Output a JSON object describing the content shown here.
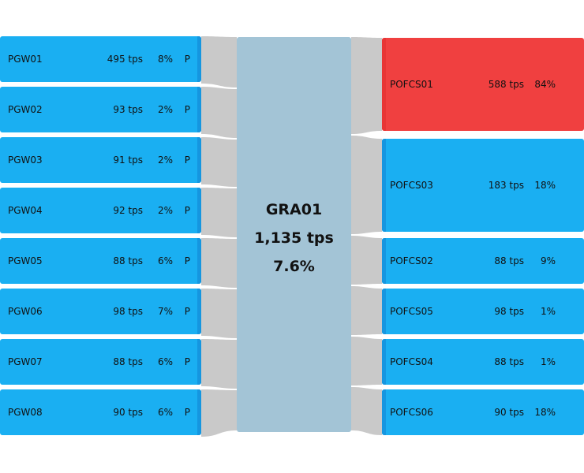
{
  "colors": {
    "node": "#1aaff2",
    "alert": "#f04040",
    "center": "#a3c4d6",
    "link": "#c9c9c9"
  },
  "center": {
    "name": "GRA01",
    "tps": "1,135 tps",
    "pct": "7.6%"
  },
  "left_nodes": [
    {
      "name": "PGW01",
      "tps": "495 tps",
      "pct": "8%",
      "flag": "P"
    },
    {
      "name": "PGW02",
      "tps": "93 tps",
      "pct": "2%",
      "flag": "P"
    },
    {
      "name": "PGW03",
      "tps": "91 tps",
      "pct": "2%",
      "flag": "P"
    },
    {
      "name": "PGW04",
      "tps": "92 tps",
      "pct": "2%",
      "flag": "P"
    },
    {
      "name": "PGW05",
      "tps": "88 tps",
      "pct": "6%",
      "flag": "P"
    },
    {
      "name": "PGW06",
      "tps": "98 tps",
      "pct": "7%",
      "flag": "P"
    },
    {
      "name": "PGW07",
      "tps": "88 tps",
      "pct": "6%",
      "flag": "P"
    },
    {
      "name": "PGW08",
      "tps": "90 tps",
      "pct": "6%",
      "flag": "P"
    }
  ],
  "right_nodes": [
    {
      "name": "POFCS01",
      "tps": "588 tps",
      "pct": "84%",
      "status": "alert"
    },
    {
      "name": "POFCS03",
      "tps": "183 tps",
      "pct": "18%",
      "status": "normal"
    },
    {
      "name": "POFCS02",
      "tps": "88 tps",
      "pct": "9%",
      "status": "normal"
    },
    {
      "name": "POFCS05",
      "tps": "98 tps",
      "pct": "1%",
      "status": "normal"
    },
    {
      "name": "POFCS04",
      "tps": "88 tps",
      "pct": "1%",
      "status": "normal"
    },
    {
      "name": "POFCS06",
      "tps": "90 tps",
      "pct": "18%",
      "status": "normal"
    }
  ]
}
